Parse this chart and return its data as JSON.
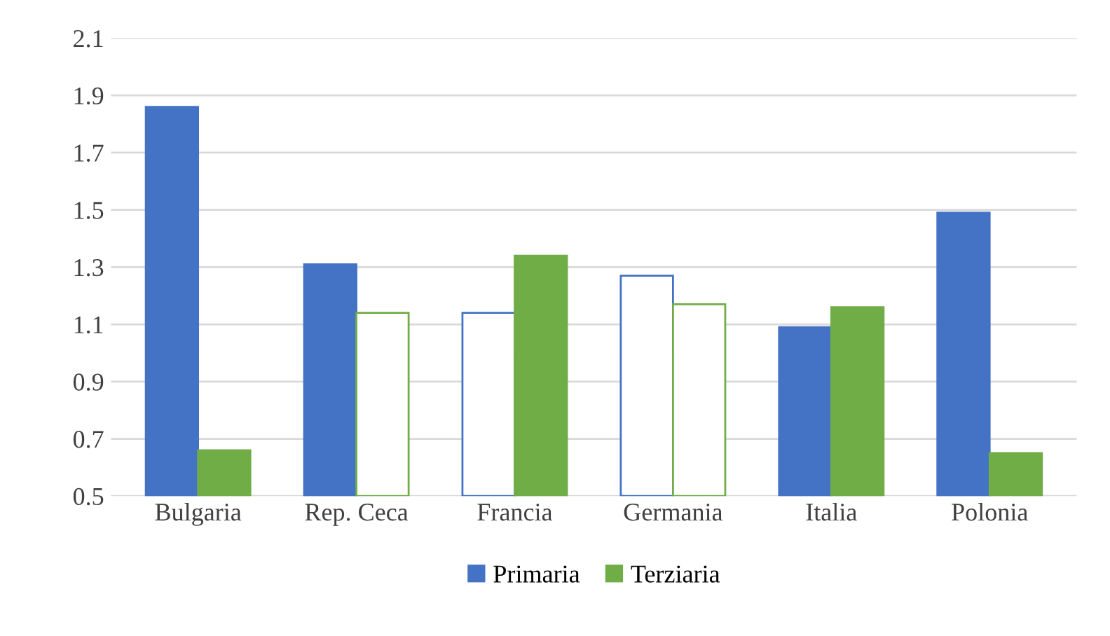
{
  "chart_data": {
    "type": "bar",
    "categories": [
      "Bulgaria",
      "Rep. Ceca",
      "Francia",
      "Germania",
      "Italia",
      "Polonia"
    ],
    "series": [
      {
        "name": "Primaria",
        "color": "#4472c4",
        "colors": [
          "#4472c4",
          "#4472c4",
          "#ffffff",
          "#ffffff",
          "#4472c4",
          "#4472c4"
        ],
        "values": [
          1.86,
          1.31,
          1.14,
          1.27,
          1.09,
          1.49
        ]
      },
      {
        "name": "Terziaria",
        "color": "#70ad47",
        "colors": [
          "#70ad47",
          "#ffffff",
          "#70ad47",
          "#ffffff",
          "#70ad47",
          "#70ad47"
        ],
        "values": [
          0.66,
          1.14,
          1.34,
          1.17,
          1.16,
          0.65
        ]
      }
    ],
    "ylim": [
      0.5,
      2.1
    ],
    "yticks": [
      {
        "value": 0.5,
        "label": "0.5"
      },
      {
        "value": 0.7,
        "label": "0.7"
      },
      {
        "value": 0.9,
        "label": "0.9"
      },
      {
        "value": 1.1,
        "label": "1.1"
      },
      {
        "value": 1.3,
        "label": "1.3"
      },
      {
        "value": 1.5,
        "label": "1.5"
      },
      {
        "value": 1.7,
        "label": "1.7"
      },
      {
        "value": 1.9,
        "label": "1.9"
      },
      {
        "value": 2.1,
        "label": "2.1"
      }
    ],
    "grid": "y",
    "legend": "bottom"
  }
}
